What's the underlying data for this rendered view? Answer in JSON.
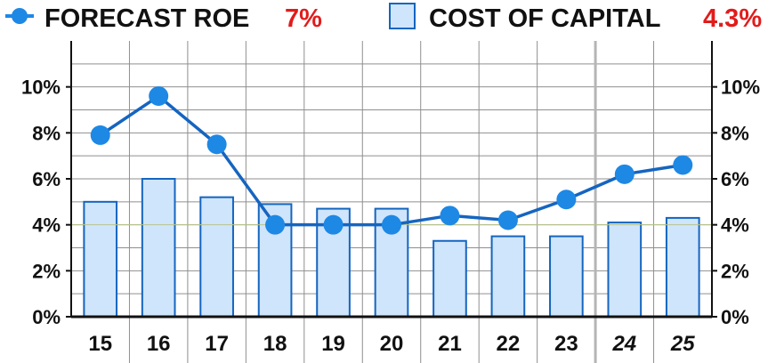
{
  "legend": {
    "line_label": "FORECAST ROE",
    "line_value": "7%",
    "bar_label": "COST OF CAPITAL",
    "bar_value": "4.3%"
  },
  "chart_data": {
    "type": "bar+line",
    "categories": [
      "15",
      "16",
      "17",
      "18",
      "19",
      "20",
      "21",
      "22",
      "23",
      "24",
      "25"
    ],
    "italic_categories": [
      "24",
      "25"
    ],
    "series": [
      {
        "name": "FORECAST ROE",
        "type": "line",
        "color": "#1e88e5",
        "values": [
          7.9,
          9.6,
          7.5,
          4.0,
          4.0,
          4.0,
          4.4,
          4.2,
          5.1,
          6.2,
          6.6
        ]
      },
      {
        "name": "COST OF CAPITAL",
        "type": "bar",
        "color": "#cfe5fb",
        "values": [
          5.0,
          6.0,
          5.2,
          4.9,
          4.7,
          4.7,
          3.3,
          3.5,
          3.5,
          4.1,
          4.3
        ]
      }
    ],
    "ylim": [
      0,
      12
    ],
    "yticks": [
      "0%",
      "2%",
      "4%",
      "6%",
      "8%",
      "10%"
    ],
    "ytick_values": [
      0,
      2,
      4,
      6,
      8,
      10
    ],
    "grid": true,
    "legend_position": "top",
    "colors": {
      "line": "#1e88e5",
      "line_dark": "#1565c0",
      "bar_fill": "#cfe5fb",
      "bar_edge": "#1565c0",
      "legend_value": "#e21b1b",
      "grid": "#8f8f8f"
    }
  }
}
